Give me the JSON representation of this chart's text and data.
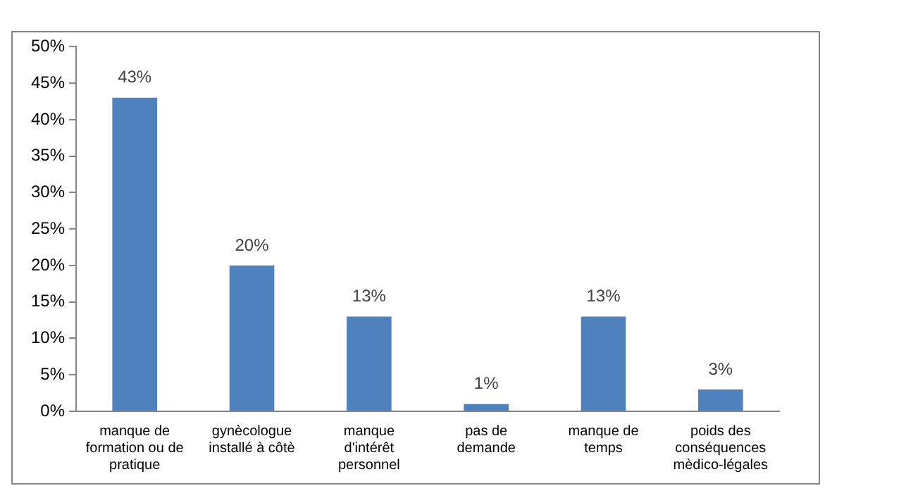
{
  "chart_data": {
    "type": "bar",
    "categories": [
      "manque de formation ou de pratique",
      "gynècologue installé à côtè",
      "manque d'intérêt personnel",
      "pas de demande",
      "manque de temps",
      "poids des conséquences mèdico-légales"
    ],
    "values": [
      43,
      20,
      13,
      1,
      13,
      3
    ],
    "color": "#4f81bd",
    "value_labels": [
      "43%",
      "20%",
      "13%",
      "1%",
      "13%",
      "3%"
    ],
    "ylim": [
      0,
      50
    ],
    "yticks": [
      {
        "value": 0,
        "label": "0%"
      },
      {
        "value": 5,
        "label": "5%"
      },
      {
        "value": 10,
        "label": "10%"
      },
      {
        "value": 15,
        "label": "15%"
      },
      {
        "value": 20,
        "label": "20%"
      },
      {
        "value": 25,
        "label": "25%"
      },
      {
        "value": 30,
        "label": "30%"
      },
      {
        "value": 35,
        "label": "35%"
      },
      {
        "value": 40,
        "label": "40%"
      },
      {
        "value": 45,
        "label": "45%"
      },
      {
        "value": 50,
        "label": "50%"
      }
    ],
    "grid": false,
    "legend": false
  }
}
